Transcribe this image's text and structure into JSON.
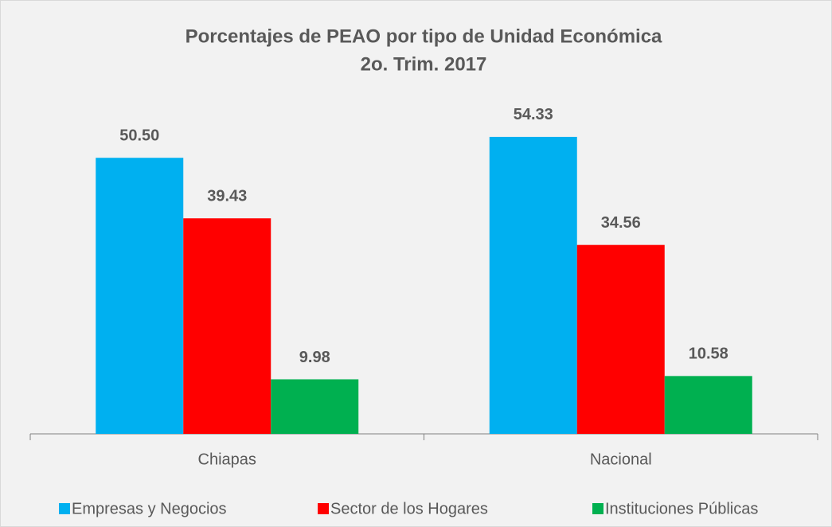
{
  "chart_data": {
    "type": "bar",
    "title": "Porcentajes de PEAO por tipo de Unidad Económica",
    "subtitle": "2o. Trim. 2017",
    "categories": [
      "Chiapas",
      "Nacional"
    ],
    "series": [
      {
        "name": "Empresas y Negocios",
        "color": "#00b0f0",
        "values": [
          50.5,
          54.33
        ],
        "value_labels": [
          "50.50",
          "54.33"
        ]
      },
      {
        "name": "Sector de los Hogares",
        "color": "#ff0000",
        "values": [
          39.43,
          34.56
        ],
        "value_labels": [
          "39.43",
          "34.56"
        ]
      },
      {
        "name": "Instituciones Públicas",
        "color": "#00b050",
        "values": [
          9.98,
          10.58
        ],
        "value_labels": [
          "9.98",
          "10.58"
        ]
      }
    ],
    "ylim": [
      0,
      60
    ],
    "legend": "bottom"
  }
}
